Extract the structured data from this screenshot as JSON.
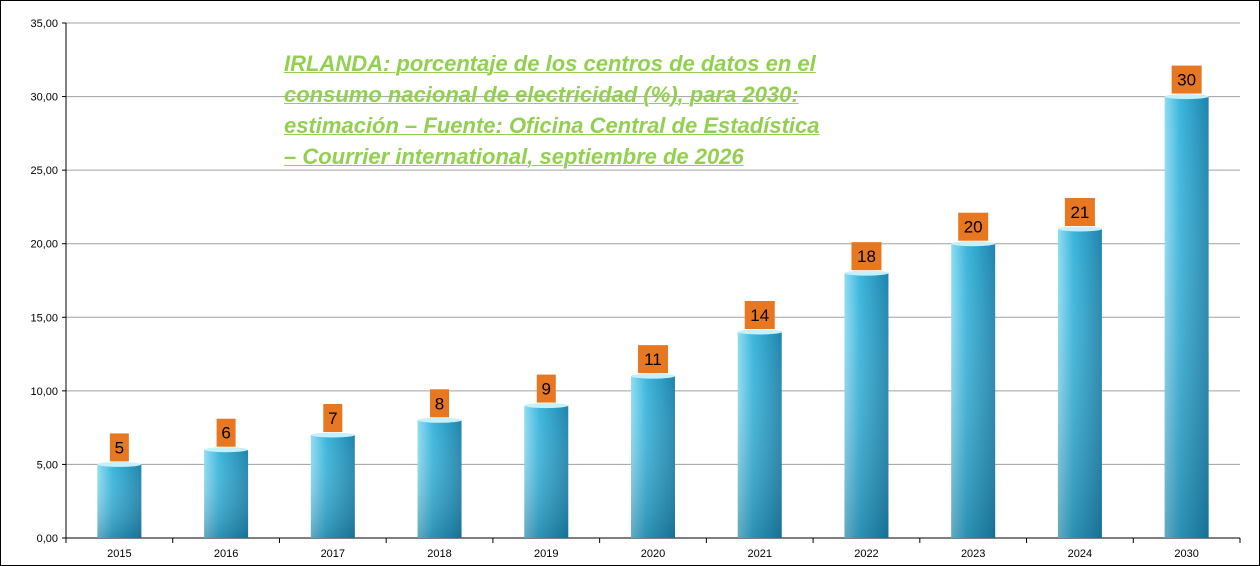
{
  "chart_data": {
    "type": "bar",
    "title": "IRLANDA: porcentaje de los centros de datos en el consumo nacional de electricidad (%), para 2030: estimación – Fuente: Oficina Central de Estadística – Courrier international, septiembre de 2026",
    "categories": [
      "2015",
      "2016",
      "2017",
      "2018",
      "2019",
      "2020",
      "2021",
      "2022",
      "2023",
      "2024",
      "2030"
    ],
    "values": [
      5,
      6,
      7,
      8,
      9,
      11,
      14,
      18,
      20,
      21,
      30
    ],
    "data_labels": [
      "5",
      "6",
      "7",
      "8",
      "9",
      "11",
      "14",
      "18",
      "20",
      "21",
      "30"
    ],
    "y_ticks": [
      "0,00",
      "5,00",
      "10,00",
      "15,00",
      "20,00",
      "25,00",
      "30,00",
      "35,00"
    ],
    "ylim": [
      0,
      35
    ],
    "xlabel": "",
    "ylabel": "",
    "grid": true,
    "legend": "none",
    "colors": {
      "bar_light": "#8fdcf2",
      "bar_mid": "#3cb6dc",
      "bar_dark": "#1e84ac",
      "label_box": "#e87722",
      "title": "#92d050",
      "grid": "#a0a0a0"
    }
  }
}
